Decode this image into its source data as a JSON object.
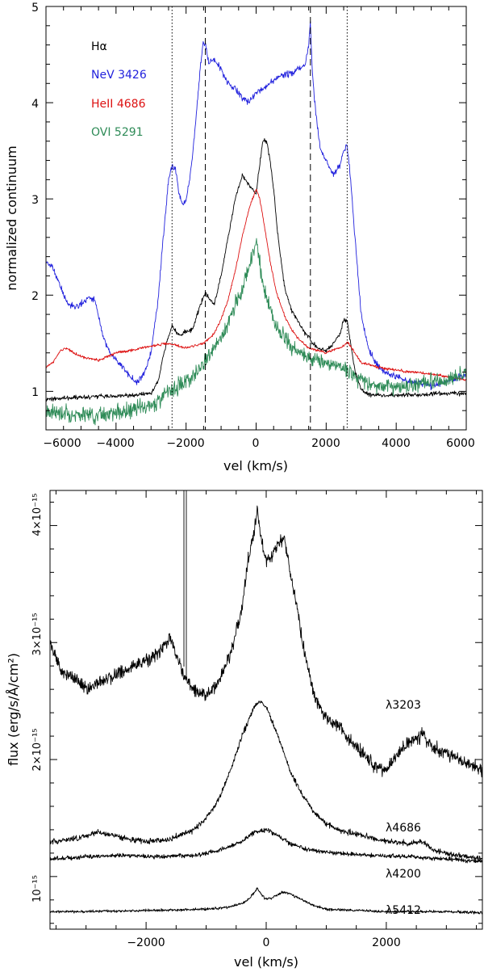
{
  "chart_data": [
    {
      "type": "line",
      "title": "",
      "xlabel": "vel (km/s)",
      "ylabel": "normalized continuum",
      "xlim": [
        -6000,
        6000
      ],
      "ylim": [
        0.6,
        5.0
      ],
      "xticks": [
        -6000,
        -4000,
        -2000,
        0,
        2000,
        4000,
        6000
      ],
      "xtick_labels": [
        "−6000",
        "−4000",
        "−2000",
        "0",
        "2000",
        "4000",
        "6000"
      ],
      "yticks": [
        1,
        2,
        3,
        4,
        5
      ],
      "ytick_labels": [
        "1",
        "2",
        "3",
        "4",
        "5"
      ],
      "grid": false,
      "legend": [
        {
          "label": "Hα",
          "color": "#000000"
        },
        {
          "label": "NeV 3426",
          "color": "#2222dd"
        },
        {
          "label": "HeII 4686",
          "color": "#dd1111"
        },
        {
          "label": "OVI 5291",
          "color": "#2e8b57"
        }
      ],
      "reference_lines": [
        {
          "x": -2400,
          "style": "dotted"
        },
        {
          "x": -1450,
          "style": "dashed"
        },
        {
          "x": 1550,
          "style": "dashed"
        },
        {
          "x": 2600,
          "style": "dotted"
        }
      ],
      "series": [
        {
          "name": "NeV 3426",
          "color": "#2222dd",
          "noise": 0.035,
          "x": [
            -6000,
            -5800,
            -5600,
            -5400,
            -5200,
            -5000,
            -4800,
            -4600,
            -4400,
            -4200,
            -4000,
            -3800,
            -3600,
            -3400,
            -3200,
            -3000,
            -2800,
            -2700,
            -2600,
            -2500,
            -2400,
            -2300,
            -2200,
            -2100,
            -2000,
            -1900,
            -1800,
            -1700,
            -1600,
            -1500,
            -1450,
            -1350,
            -1200,
            -1000,
            -800,
            -600,
            -400,
            -200,
            0,
            200,
            400,
            600,
            800,
            1000,
            1200,
            1400,
            1500,
            1550,
            1600,
            1700,
            1800,
            1900,
            2000,
            2200,
            2400,
            2500,
            2600,
            2700,
            2800,
            3000,
            3200,
            3400,
            3600,
            3800,
            4000,
            4200,
            4400,
            4600,
            4800,
            5000,
            5200,
            5400,
            5600,
            5800,
            6000
          ],
          "y": [
            2.35,
            2.28,
            2.1,
            1.92,
            1.88,
            1.9,
            1.98,
            1.95,
            1.6,
            1.42,
            1.32,
            1.25,
            1.15,
            1.1,
            1.18,
            1.4,
            1.95,
            2.4,
            2.8,
            3.2,
            3.35,
            3.3,
            3.05,
            2.95,
            2.98,
            3.2,
            3.5,
            3.9,
            4.35,
            4.65,
            4.62,
            4.4,
            4.45,
            4.35,
            4.2,
            4.15,
            4.05,
            4.0,
            4.1,
            4.15,
            4.2,
            4.25,
            4.3,
            4.3,
            4.35,
            4.4,
            4.6,
            4.85,
            4.35,
            3.9,
            3.6,
            3.45,
            3.4,
            3.25,
            3.35,
            3.5,
            3.55,
            3.2,
            2.7,
            1.8,
            1.45,
            1.3,
            1.22,
            1.18,
            1.15,
            1.12,
            1.1,
            1.1,
            1.08,
            1.05,
            1.08,
            1.1,
            1.12,
            1.15,
            1.18
          ]
        },
        {
          "name": "Hα",
          "color": "#000000",
          "noise": 0.025,
          "x": [
            -6000,
            -5500,
            -5000,
            -4500,
            -4000,
            -3500,
            -3000,
            -2800,
            -2600,
            -2400,
            -2200,
            -2000,
            -1800,
            -1600,
            -1450,
            -1300,
            -1200,
            -1000,
            -800,
            -600,
            -400,
            -200,
            0,
            100,
            200,
            300,
            400,
            500,
            600,
            700,
            800,
            1000,
            1200,
            1400,
            1550,
            1600,
            1800,
            2000,
            2200,
            2400,
            2500,
            2600,
            2700,
            2800,
            3000,
            3200,
            3500,
            4000,
            4500,
            5000,
            5500,
            6000
          ],
          "y": [
            0.92,
            0.93,
            0.94,
            0.95,
            0.95,
            0.96,
            0.98,
            1.1,
            1.45,
            1.68,
            1.58,
            1.62,
            1.65,
            1.9,
            2.02,
            1.95,
            1.9,
            2.2,
            2.6,
            3.0,
            3.25,
            3.15,
            3.05,
            3.35,
            3.62,
            3.6,
            3.4,
            3.1,
            2.7,
            2.4,
            2.1,
            1.85,
            1.72,
            1.6,
            1.55,
            1.5,
            1.45,
            1.42,
            1.5,
            1.6,
            1.75,
            1.72,
            1.5,
            1.25,
            1.02,
            0.97,
            0.96,
            0.96,
            0.96,
            0.97,
            0.98,
            0.98
          ]
        },
        {
          "name": "HeII 4686",
          "color": "#dd1111",
          "noise": 0.015,
          "x": [
            -6000,
            -5800,
            -5600,
            -5400,
            -5200,
            -5000,
            -4500,
            -4000,
            -3500,
            -3000,
            -2500,
            -2000,
            -1500,
            -1200,
            -1000,
            -800,
            -600,
            -400,
            -200,
            0,
            100,
            200,
            400,
            600,
            800,
            1000,
            1200,
            1500,
            2000,
            2500,
            2600,
            3000,
            3500,
            4000,
            4500,
            5000,
            5500,
            6000
          ],
          "y": [
            1.25,
            1.3,
            1.42,
            1.45,
            1.4,
            1.36,
            1.32,
            1.4,
            1.43,
            1.47,
            1.5,
            1.45,
            1.5,
            1.6,
            1.75,
            1.95,
            2.25,
            2.6,
            2.9,
            3.1,
            3.0,
            2.8,
            2.35,
            2.0,
            1.8,
            1.65,
            1.55,
            1.45,
            1.4,
            1.47,
            1.52,
            1.3,
            1.25,
            1.22,
            1.2,
            1.18,
            1.15,
            1.12
          ]
        },
        {
          "name": "OVI 5291",
          "color": "#2e8b57",
          "noise": 0.09,
          "x": [
            -6000,
            -5500,
            -5000,
            -4500,
            -4000,
            -3500,
            -3000,
            -2500,
            -2000,
            -1500,
            -1000,
            -800,
            -600,
            -400,
            -200,
            -100,
            0,
            100,
            200,
            400,
            600,
            800,
            1000,
            1500,
            2000,
            2500,
            3000,
            3500,
            4000,
            4500,
            5000,
            5500,
            6000
          ],
          "y": [
            0.8,
            0.78,
            0.75,
            0.76,
            0.78,
            0.8,
            0.85,
            1.0,
            1.1,
            1.3,
            1.55,
            1.7,
            1.9,
            2.05,
            2.3,
            2.45,
            2.55,
            2.35,
            2.1,
            1.85,
            1.65,
            1.55,
            1.45,
            1.35,
            1.3,
            1.25,
            1.12,
            1.05,
            1.05,
            1.07,
            1.1,
            1.12,
            1.18
          ]
        }
      ]
    },
    {
      "type": "line",
      "title": "",
      "xlabel": "vel (km/s)",
      "ylabel": "flux (erg/s/Å/cm²)",
      "xlim": [
        -3600,
        3600
      ],
      "ylim": [
        0.55,
        4.3
      ],
      "xticks": [
        -2000,
        0,
        2000
      ],
      "xtick_labels": [
        "−2000",
        "0",
        "2000"
      ],
      "yticks": [
        1,
        2,
        3,
        4
      ],
      "ytick_labels": [
        "10⁻¹⁵",
        "2×10⁻¹⁵",
        "3×10⁻¹⁵",
        "4×10⁻¹⁵"
      ],
      "y_unit_scale": "×10⁻¹⁵",
      "grid": false,
      "series": [
        {
          "name": "λ3203",
          "noise": 0.06,
          "x": [
            -3600,
            -3400,
            -3200,
            -3000,
            -2800,
            -2600,
            -2400,
            -2200,
            -2000,
            -1800,
            -1600,
            -1500,
            -1400,
            -1300,
            -1200,
            -1000,
            -800,
            -600,
            -400,
            -300,
            -200,
            -150,
            -100,
            0,
            100,
            200,
            300,
            400,
            500,
            600,
            800,
            1000,
            1200,
            1400,
            1600,
            1800,
            2000,
            2200,
            2400,
            2600,
            2800,
            3000,
            3200,
            3400,
            3600
          ],
          "y": [
            3.0,
            2.75,
            2.7,
            2.6,
            2.65,
            2.7,
            2.75,
            2.8,
            2.85,
            2.9,
            3.05,
            2.9,
            2.75,
            2.65,
            2.6,
            2.55,
            2.65,
            2.9,
            3.3,
            3.7,
            3.95,
            4.15,
            3.9,
            3.7,
            3.75,
            3.85,
            3.9,
            3.6,
            3.35,
            3.0,
            2.55,
            2.35,
            2.3,
            2.15,
            2.05,
            1.95,
            1.9,
            2.05,
            2.15,
            2.2,
            2.1,
            2.05,
            2.0,
            1.95,
            1.9
          ]
        },
        {
          "name": "λ4686",
          "noise": 0.025,
          "x": [
            -3600,
            -3200,
            -2800,
            -2400,
            -2000,
            -1600,
            -1200,
            -1000,
            -800,
            -600,
            -400,
            -200,
            -100,
            0,
            200,
            400,
            600,
            800,
            1000,
            1200,
            1600,
            2000,
            2400,
            2600,
            2800,
            3200,
            3600
          ],
          "y": [
            1.3,
            1.32,
            1.38,
            1.33,
            1.3,
            1.32,
            1.4,
            1.5,
            1.65,
            1.9,
            2.2,
            2.45,
            2.5,
            2.45,
            2.2,
            1.9,
            1.7,
            1.55,
            1.45,
            1.4,
            1.35,
            1.3,
            1.28,
            1.3,
            1.22,
            1.18,
            1.15
          ]
        },
        {
          "name": "λ4200",
          "noise": 0.02,
          "x": [
            -3600,
            -3000,
            -2400,
            -1800,
            -1200,
            -800,
            -400,
            -200,
            0,
            200,
            400,
            800,
            1200,
            1800,
            2400,
            3000,
            3600
          ],
          "y": [
            1.15,
            1.17,
            1.18,
            1.17,
            1.18,
            1.22,
            1.3,
            1.38,
            1.4,
            1.35,
            1.28,
            1.22,
            1.2,
            1.18,
            1.17,
            1.15,
            1.13
          ]
        },
        {
          "name": "λ5412",
          "noise": 0.012,
          "x": [
            -3600,
            -3000,
            -2000,
            -1000,
            -600,
            -400,
            -300,
            -200,
            -150,
            -100,
            0,
            100,
            200,
            300,
            400,
            600,
            800,
            1000,
            1500,
            2000,
            3000,
            3600
          ],
          "y": [
            0.7,
            0.7,
            0.71,
            0.72,
            0.74,
            0.77,
            0.8,
            0.86,
            0.9,
            0.86,
            0.8,
            0.82,
            0.85,
            0.87,
            0.85,
            0.8,
            0.75,
            0.72,
            0.71,
            0.7,
            0.7,
            0.69
          ]
        }
      ]
    }
  ]
}
